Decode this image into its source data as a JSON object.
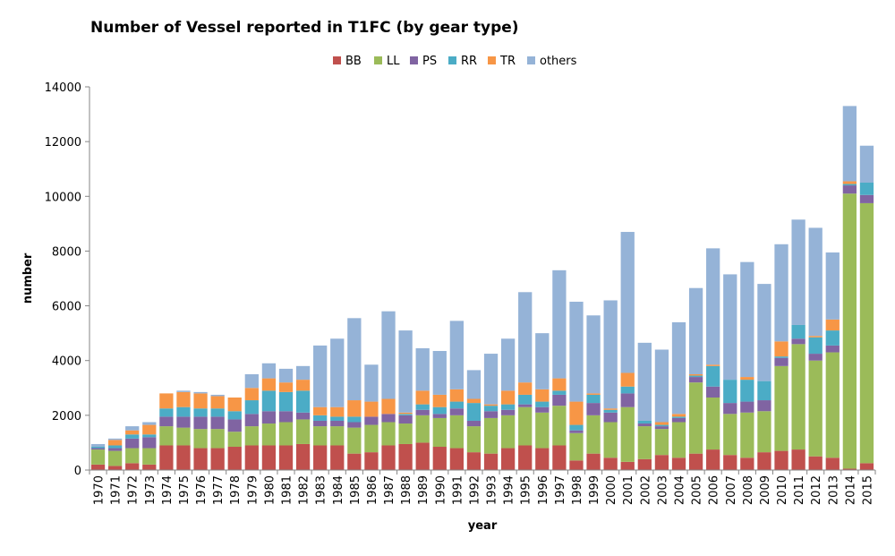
{
  "chart_data": {
    "type": "bar",
    "stacked": true,
    "title": "Number of Vessel reported in T1FC (by gear type)",
    "xlabel": "year",
    "ylabel": "number",
    "ylim": [
      0,
      14000
    ],
    "yticks": [
      0,
      2000,
      4000,
      6000,
      8000,
      10000,
      12000,
      14000
    ],
    "legend_position": "top",
    "grid": false,
    "categories": [
      "1970",
      "1971",
      "1972",
      "1973",
      "1974",
      "1975",
      "1976",
      "1977",
      "1978",
      "1979",
      "1980",
      "1981",
      "1982",
      "1983",
      "1984",
      "1985",
      "1986",
      "1987",
      "1988",
      "1989",
      "1990",
      "1991",
      "1992",
      "1993",
      "1994",
      "1995",
      "1996",
      "1997",
      "1998",
      "1999",
      "2000",
      "2001",
      "2002",
      "2003",
      "2004",
      "2005",
      "2006",
      "2007",
      "2008",
      "2009",
      "2010",
      "2011",
      "2012",
      "2013",
      "2014",
      "2015"
    ],
    "series": [
      {
        "name": "BB",
        "color": "#c0504d",
        "values": [
          200,
          150,
          250,
          200,
          900,
          900,
          800,
          800,
          850,
          900,
          900,
          900,
          950,
          900,
          900,
          600,
          650,
          900,
          950,
          1000,
          850,
          800,
          650,
          600,
          800,
          900,
          800,
          900,
          350,
          600,
          450,
          300,
          400,
          550,
          450,
          600,
          750,
          550,
          450,
          650,
          700,
          750,
          500,
          450,
          50,
          250
        ]
      },
      {
        "name": "LL",
        "color": "#9bbb59",
        "values": [
          550,
          550,
          550,
          600,
          700,
          650,
          700,
          700,
          550,
          700,
          800,
          850,
          900,
          700,
          700,
          950,
          1000,
          850,
          750,
          1000,
          1050,
          1200,
          950,
          1300,
          1200,
          1400,
          1300,
          1450,
          1000,
          1400,
          1300,
          2000,
          1200,
          950,
          1300,
          2600,
          1900,
          1500,
          1650,
          1500,
          3100,
          3850,
          3500,
          3850,
          10050,
          9500
        ]
      },
      {
        "name": "PS",
        "color": "#8064a2",
        "values": [
          50,
          100,
          350,
          400,
          350,
          400,
          450,
          450,
          450,
          450,
          450,
          400,
          250,
          200,
          200,
          200,
          300,
          300,
          300,
          200,
          150,
          250,
          200,
          250,
          200,
          100,
          200,
          400,
          100,
          450,
          350,
          500,
          100,
          100,
          150,
          200,
          400,
          400,
          400,
          400,
          300,
          200,
          250,
          250,
          300,
          300
        ]
      },
      {
        "name": "RR",
        "color": "#4bacc6",
        "values": [
          50,
          100,
          150,
          100,
          300,
          350,
          300,
          300,
          300,
          500,
          750,
          700,
          800,
          200,
          150,
          200,
          0,
          0,
          50,
          200,
          250,
          250,
          650,
          200,
          200,
          350,
          200,
          150,
          200,
          300,
          100,
          250,
          100,
          50,
          50,
          50,
          750,
          850,
          800,
          700,
          50,
          500,
          600,
          550,
          50,
          450
        ]
      },
      {
        "name": "TR",
        "color": "#f79646",
        "values": [
          0,
          200,
          150,
          350,
          550,
          550,
          550,
          450,
          500,
          450,
          450,
          350,
          400,
          300,
          350,
          600,
          550,
          550,
          50,
          500,
          450,
          450,
          150,
          50,
          500,
          450,
          450,
          450,
          850,
          50,
          50,
          500,
          0,
          100,
          100,
          50,
          50,
          0,
          100,
          0,
          550,
          0,
          50,
          400,
          100,
          0
        ]
      },
      {
        "name": "others",
        "color": "#95b3d7",
        "values": [
          100,
          50,
          150,
          100,
          0,
          50,
          50,
          50,
          0,
          500,
          550,
          500,
          500,
          2250,
          2500,
          3000,
          1350,
          3200,
          3000,
          1550,
          1600,
          2500,
          1050,
          1850,
          1900,
          3300,
          2050,
          3950,
          3650,
          2850,
          3950,
          5150,
          2850,
          2650,
          3350,
          3150,
          4250,
          3850,
          4200,
          3550,
          3550,
          3850,
          3950,
          2450,
          2750,
          1350
        ]
      }
    ]
  }
}
